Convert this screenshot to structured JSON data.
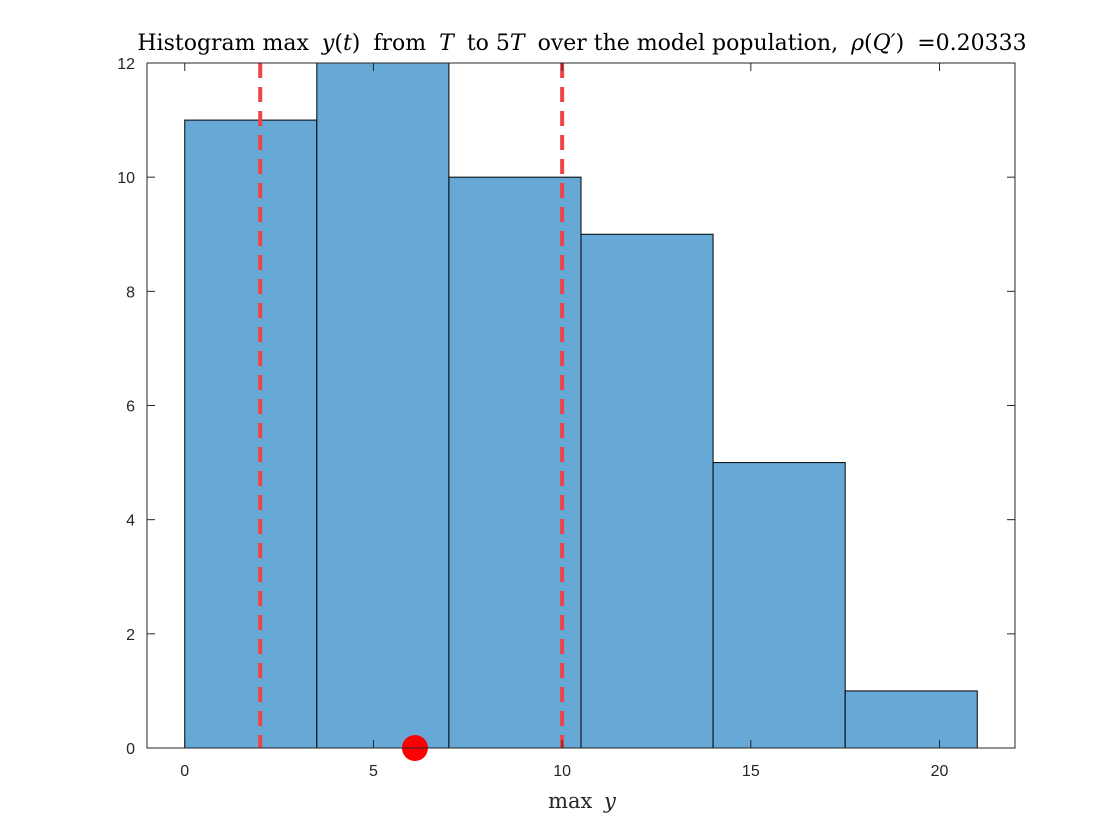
{
  "chart_data": {
    "type": "bar",
    "subtype": "histogram",
    "title": {
      "prefix": "Histogram max",
      "var1": "y",
      "paren1": "(",
      "var2": "t",
      "paren2": ")",
      "mid1": "from",
      "var3": "T",
      "mid2": "to 5",
      "var4": "T",
      "mid3": "over the model population,",
      "rho": "ρ",
      "paren3": "(",
      "var5": "Q′",
      "paren4": ")",
      "eq": "=0.20333"
    },
    "xlabel": {
      "op": "max",
      "var": "y"
    },
    "ylabel": "",
    "bin_edges": [
      0,
      3.5,
      7,
      10.5,
      14,
      17.5,
      21
    ],
    "counts": [
      11,
      12,
      10,
      9,
      5,
      1
    ],
    "xlim": [
      -1,
      22
    ],
    "ylim": [
      0,
      12
    ],
    "xticks": [
      0,
      5,
      10,
      15,
      20
    ],
    "yticks": [
      0,
      2,
      4,
      6,
      8,
      10,
      12
    ],
    "reference_lines_x": [
      2,
      10
    ],
    "marker_point": {
      "x": 6.1,
      "y": 0
    },
    "grid": false,
    "colors": {
      "bar_fill": "#66a9d7",
      "bar_edge": "#000000",
      "ref_line": "#ef4346",
      "marker": "#ff0000",
      "axis": "#262626"
    }
  }
}
